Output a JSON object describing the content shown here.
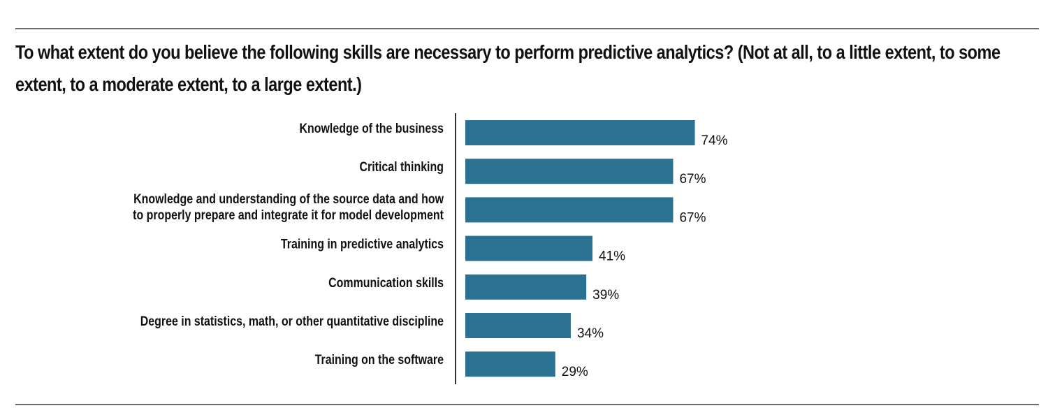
{
  "chart_data": {
    "type": "bar",
    "orientation": "horizontal",
    "title": "To what extent do you believe the following skills are necessary to perform predictive analytics? (Not at all, to a little extent, to some extent, to a moderate extent, to a large extent.)",
    "categories": [
      "Knowledge of the business",
      "Critical thinking",
      "Knowledge and understanding of the source data and how to properly prepare and integrate it for model development",
      "Training in predictive analytics",
      "Communication skills",
      "Degree in statistics, math, or other quantitative discipline",
      "Training on the software"
    ],
    "category_lines": [
      [
        "Knowledge of the business"
      ],
      [
        "Critical thinking"
      ],
      [
        "Knowledge and understanding of the source data and how",
        "to properly prepare and integrate it for model development"
      ],
      [
        "Training in predictive analytics"
      ],
      [
        "Communication skills"
      ],
      [
        "Degree in statistics, math, or other quantitative discipline"
      ],
      [
        "Training on the software"
      ]
    ],
    "values": [
      74,
      67,
      67,
      41,
      39,
      34,
      29
    ],
    "value_labels": [
      "74%",
      "67%",
      "67%",
      "41%",
      "39%",
      "34%",
      "29%"
    ],
    "xlim": [
      0,
      100
    ],
    "unit": "%",
    "bar_color": "#2b7191",
    "grid": false,
    "legend": "none"
  }
}
